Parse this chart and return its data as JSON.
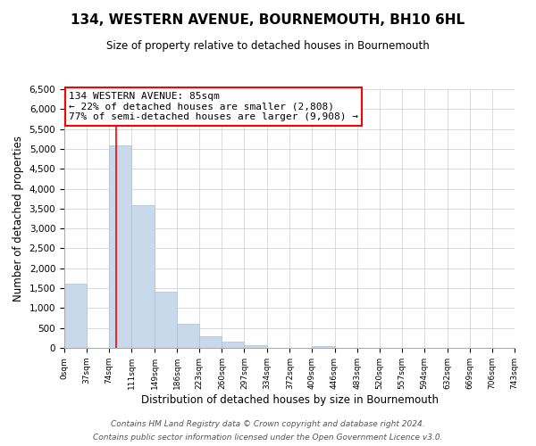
{
  "title": "134, WESTERN AVENUE, BOURNEMOUTH, BH10 6HL",
  "subtitle": "Size of property relative to detached houses in Bournemouth",
  "xlabel": "Distribution of detached houses by size in Bournemouth",
  "ylabel": "Number of detached properties",
  "bar_color": "#c9d9ec",
  "bar_edge_color": "#a8c0d8",
  "annotation_line1": "134 WESTERN AVENUE: 85sqm",
  "annotation_line2": "← 22% of detached houses are smaller (2,808)",
  "annotation_line3": "77% of semi-detached houses are larger (9,908) →",
  "vline_x": 85,
  "vline_color": "red",
  "bin_edges": [
    0,
    37,
    74,
    111,
    149,
    186,
    223,
    260,
    297,
    334,
    372,
    409,
    446,
    483,
    520,
    557,
    594,
    632,
    669,
    706,
    743
  ],
  "bin_counts": [
    1620,
    0,
    5080,
    3580,
    1420,
    610,
    300,
    150,
    70,
    0,
    0,
    50,
    0,
    0,
    0,
    0,
    0,
    0,
    0,
    0
  ],
  "ylim": [
    0,
    6500
  ],
  "yticks": [
    0,
    500,
    1000,
    1500,
    2000,
    2500,
    3000,
    3500,
    4000,
    4500,
    5000,
    5500,
    6000,
    6500
  ],
  "footer_line1": "Contains HM Land Registry data © Crown copyright and database right 2024.",
  "footer_line2": "Contains public sector information licensed under the Open Government Licence v3.0.",
  "background_color": "#ffffff",
  "grid_color": "#cccccc"
}
